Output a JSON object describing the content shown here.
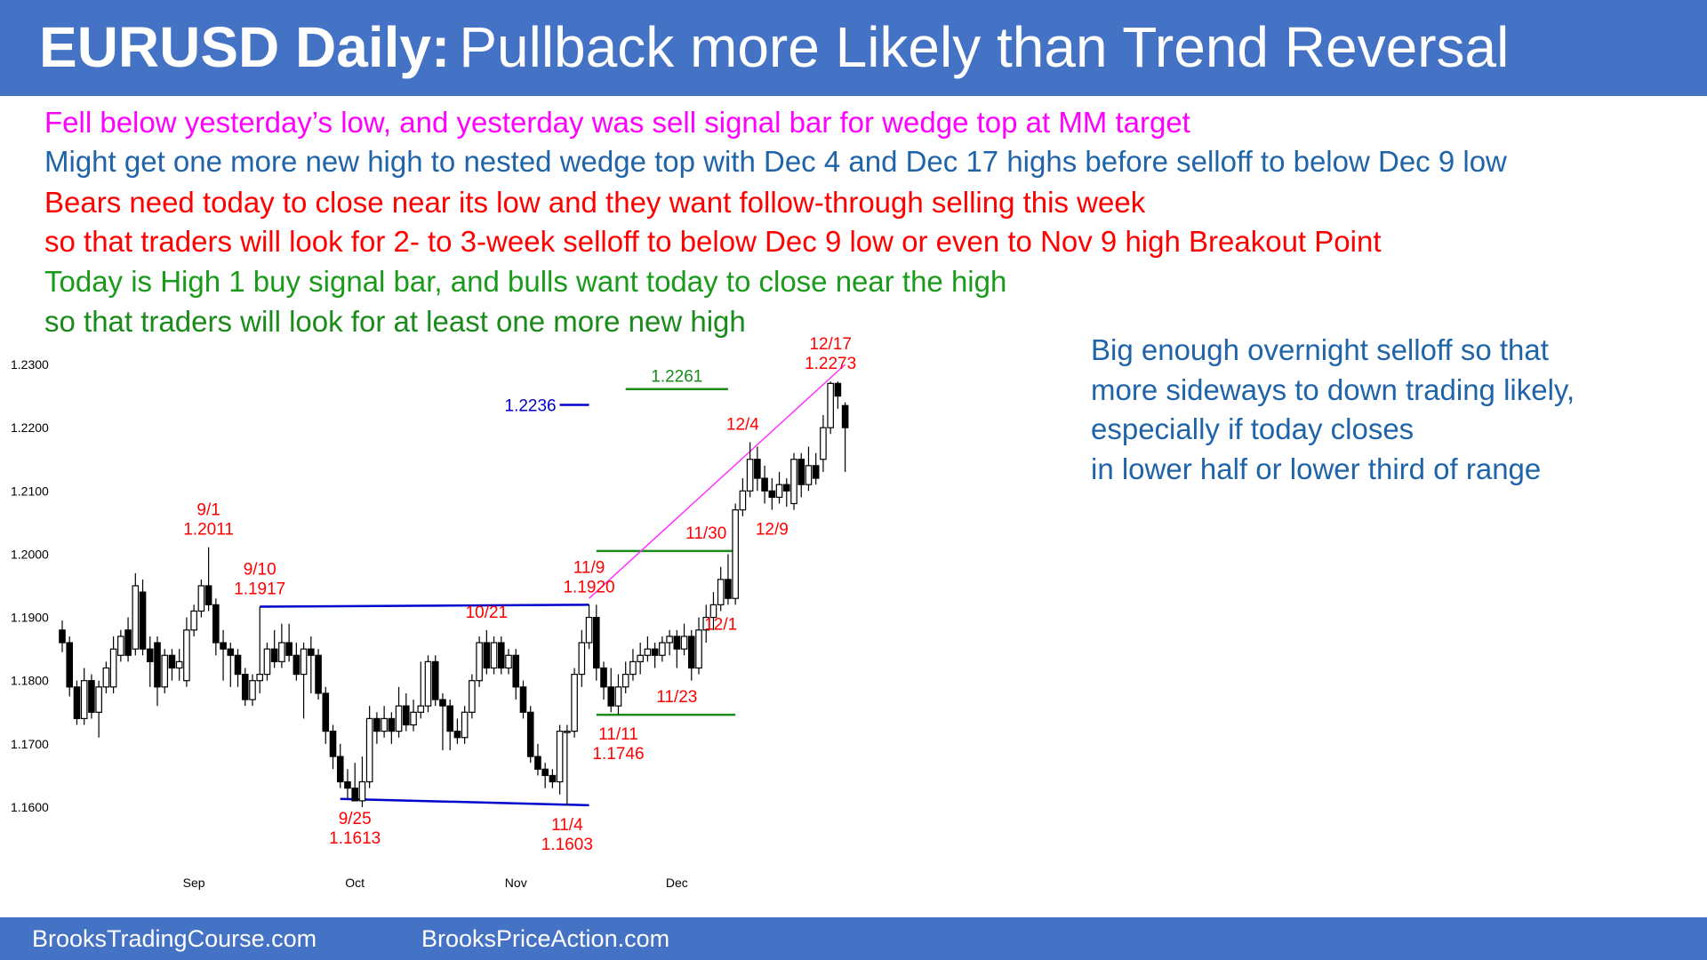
{
  "header": {
    "title_bold": "EURUSD Daily:",
    "title_rest": "Pullback more Likely than Trend Reversal"
  },
  "notes": [
    {
      "text": "Fell below yesterday’s low, and yesterday was sell signal bar for wedge top at MM target",
      "color": "#ff00ff"
    },
    {
      "text": "Might get one more new high to nested wedge top with Dec 4 and Dec 17 highs before selloff to below Dec 9 low",
      "color": "#1f63a9"
    },
    {
      "text": "Bears need today to close near its low and they want follow-through selling this week",
      "color": "#ff0000"
    },
    {
      "text": "so that traders will look for 2- to 3-week selloff to below Dec 9 low or even to Nov 9 high Breakout Point",
      "color": "#ff0000"
    },
    {
      "text": "Today is High 1 buy signal bar, and bulls want today to close near the high",
      "color": "#1a9a1a"
    },
    {
      "text": "so that traders will look for at least one more new high",
      "color": "#1a8a1a"
    }
  ],
  "side_note": [
    "Big enough overnight selloff so that",
    "more sideways to down trading likely,",
    "especially  if today closes",
    "in lower half or lower third of range"
  ],
  "footer": {
    "left": "BrooksTradingCourse.com",
    "right": "BrooksPriceAction.com"
  },
  "colors": {
    "header_bg": "#4472c4",
    "bull_body": "#ffffff",
    "bear_body": "#000000",
    "annotation_red": "#ff0000",
    "line_blue": "#0000cc",
    "line_green": "#1a8a1a",
    "wedge_line": "#ff33ff"
  },
  "chart_data": {
    "type": "candlestick",
    "title": "EURUSD Daily",
    "y_ticks": [
      "1.2300",
      "1.2200",
      "1.2100",
      "1.2000",
      "1.1900",
      "1.1800",
      "1.1700",
      "1.1600"
    ],
    "ylim": [
      1.1525,
      1.232
    ],
    "x_ticks": [
      {
        "label": "Sep",
        "bar": 18
      },
      {
        "label": "Oct",
        "bar": 40
      },
      {
        "label": "Nov",
        "bar": 62
      },
      {
        "label": "Dec",
        "bar": 84
      }
    ],
    "candles": [
      [
        1.188,
        1.186,
        1.1895,
        1.1845
      ],
      [
        1.186,
        1.179,
        1.187,
        1.1775
      ],
      [
        1.179,
        1.174,
        1.18,
        1.173
      ],
      [
        1.174,
        1.18,
        1.182,
        1.173
      ],
      [
        1.18,
        1.175,
        1.181,
        1.174
      ],
      [
        1.175,
        1.179,
        1.18,
        1.171
      ],
      [
        1.179,
        1.182,
        1.183,
        1.178
      ],
      [
        1.179,
        1.185,
        1.187,
        1.178
      ],
      [
        1.184,
        1.187,
        1.188,
        1.183
      ],
      [
        1.188,
        1.184,
        1.19,
        1.183
      ],
      [
        1.185,
        1.195,
        1.197,
        1.184
      ],
      [
        1.194,
        1.185,
        1.196,
        1.184
      ],
      [
        1.185,
        1.183,
        1.187,
        1.179
      ],
      [
        1.186,
        1.179,
        1.187,
        1.176
      ],
      [
        1.179,
        1.184,
        1.185,
        1.178
      ],
      [
        1.184,
        1.182,
        1.185,
        1.18
      ],
      [
        1.182,
        1.183,
        1.185,
        1.18
      ],
      [
        1.18,
        1.188,
        1.19,
        1.179
      ],
      [
        1.188,
        1.191,
        1.192,
        1.187
      ],
      [
        1.191,
        1.195,
        1.196,
        1.19
      ],
      [
        1.195,
        1.192,
        1.2011,
        1.191
      ],
      [
        1.192,
        1.186,
        1.193,
        1.184
      ],
      [
        1.186,
        1.185,
        1.188,
        1.18
      ],
      [
        1.185,
        1.184,
        1.186,
        1.179
      ],
      [
        1.184,
        1.181,
        1.185,
        1.179
      ],
      [
        1.181,
        1.177,
        1.182,
        1.176
      ],
      [
        1.177,
        1.18,
        1.181,
        1.176
      ],
      [
        1.18,
        1.181,
        1.1917,
        1.178
      ],
      [
        1.181,
        1.185,
        1.186,
        1.18
      ],
      [
        1.185,
        1.183,
        1.188,
        1.182
      ],
      [
        1.183,
        1.186,
        1.189,
        1.182
      ],
      [
        1.186,
        1.184,
        1.189,
        1.183
      ],
      [
        1.184,
        1.181,
        1.186,
        1.18
      ],
      [
        1.181,
        1.185,
        1.186,
        1.174
      ],
      [
        1.185,
        1.184,
        1.187,
        1.178
      ],
      [
        1.184,
        1.178,
        1.185,
        1.177
      ],
      [
        1.178,
        1.172,
        1.179,
        1.17
      ],
      [
        1.172,
        1.168,
        1.173,
        1.166
      ],
      [
        1.168,
        1.164,
        1.17,
        1.163
      ],
      [
        1.164,
        1.163,
        1.166,
        1.1613
      ],
      [
        1.163,
        1.161,
        1.167,
        1.1613
      ],
      [
        1.161,
        1.164,
        1.168,
        1.16
      ],
      [
        1.164,
        1.174,
        1.176,
        1.163
      ],
      [
        1.174,
        1.172,
        1.175,
        1.17
      ],
      [
        1.172,
        1.174,
        1.176,
        1.171
      ],
      [
        1.174,
        1.172,
        1.175,
        1.17
      ],
      [
        1.172,
        1.176,
        1.179,
        1.171
      ],
      [
        1.176,
        1.173,
        1.178,
        1.172
      ],
      [
        1.173,
        1.175,
        1.177,
        1.172
      ],
      [
        1.175,
        1.176,
        1.183,
        1.174
      ],
      [
        1.176,
        1.183,
        1.184,
        1.175
      ],
      [
        1.183,
        1.177,
        1.184,
        1.176
      ],
      [
        1.177,
        1.176,
        1.178,
        1.169
      ],
      [
        1.176,
        1.172,
        1.177,
        1.169
      ],
      [
        1.172,
        1.171,
        1.174,
        1.17
      ],
      [
        1.171,
        1.175,
        1.176,
        1.17
      ],
      [
        1.175,
        1.18,
        1.181,
        1.174
      ],
      [
        1.18,
        1.186,
        1.187,
        1.179
      ],
      [
        1.186,
        1.182,
        1.188,
        1.181
      ],
      [
        1.182,
        1.186,
        1.187,
        1.181
      ],
      [
        1.186,
        1.182,
        1.187,
        1.181
      ],
      [
        1.182,
        1.184,
        1.185,
        1.181
      ],
      [
        1.184,
        1.179,
        1.185,
        1.177
      ],
      [
        1.179,
        1.175,
        1.18,
        1.174
      ],
      [
        1.175,
        1.168,
        1.176,
        1.167
      ],
      [
        1.168,
        1.166,
        1.17,
        1.165
      ],
      [
        1.166,
        1.165,
        1.167,
        1.163
      ],
      [
        1.165,
        1.164,
        1.166,
        1.163
      ],
      [
        1.164,
        1.172,
        1.173,
        1.162
      ],
      [
        1.172,
        1.172,
        1.173,
        1.1603
      ],
      [
        1.172,
        1.181,
        1.182,
        1.171
      ],
      [
        1.181,
        1.186,
        1.188,
        1.179
      ],
      [
        1.186,
        1.19,
        1.192,
        1.185
      ],
      [
        1.19,
        1.182,
        1.192,
        1.18
      ],
      [
        1.182,
        1.179,
        1.183,
        1.177
      ],
      [
        1.179,
        1.176,
        1.182,
        1.175
      ],
      [
        1.176,
        1.179,
        1.181,
        1.1746
      ],
      [
        1.179,
        1.181,
        1.183,
        1.178
      ],
      [
        1.181,
        1.183,
        1.185,
        1.18
      ],
      [
        1.183,
        1.184,
        1.186,
        1.181
      ],
      [
        1.184,
        1.185,
        1.187,
        1.183
      ],
      [
        1.185,
        1.184,
        1.186,
        1.182
      ],
      [
        1.184,
        1.186,
        1.187,
        1.183
      ],
      [
        1.186,
        1.187,
        1.188,
        1.184
      ],
      [
        1.187,
        1.185,
        1.188,
        1.182
      ],
      [
        1.185,
        1.187,
        1.189,
        1.184
      ],
      [
        1.187,
        1.182,
        1.188,
        1.18
      ],
      [
        1.182,
        1.188,
        1.19,
        1.181
      ],
      [
        1.188,
        1.19,
        1.192,
        1.186
      ],
      [
        1.19,
        1.192,
        1.194,
        1.188
      ],
      [
        1.192,
        1.196,
        1.198,
        1.191
      ],
      [
        1.196,
        1.193,
        1.2,
        1.192
      ],
      [
        1.193,
        1.207,
        1.208,
        1.192
      ],
      [
        1.207,
        1.21,
        1.212,
        1.206
      ],
      [
        1.21,
        1.215,
        1.2177,
        1.209
      ],
      [
        1.215,
        1.212,
        1.217,
        1.21
      ],
      [
        1.212,
        1.21,
        1.214,
        1.208
      ],
      [
        1.21,
        1.209,
        1.212,
        1.207
      ],
      [
        1.209,
        1.211,
        1.213,
        1.208
      ],
      [
        1.211,
        1.21,
        1.212,
        1.2075
      ],
      [
        1.208,
        1.215,
        1.216,
        1.207
      ],
      [
        1.215,
        1.211,
        1.216,
        1.209
      ],
      [
        1.211,
        1.214,
        1.217,
        1.21
      ],
      [
        1.214,
        1.212,
        1.216,
        1.211
      ],
      [
        1.215,
        1.22,
        1.222,
        1.213
      ],
      [
        1.22,
        1.227,
        1.2273,
        1.219
      ],
      [
        1.227,
        1.225,
        1.2273,
        1.223
      ],
      [
        1.2235,
        1.22,
        1.224,
        1.213
      ]
    ],
    "horizontal_lines": [
      {
        "from_bar": 27,
        "to_bar": 72,
        "y1": 1.1917,
        "y2": 1.192,
        "color": "#0000cc"
      },
      {
        "from_bar": 38,
        "to_bar": 72,
        "y1": 1.1613,
        "y2": 1.1603,
        "color": "#0000cc"
      },
      {
        "from_bar": 73,
        "to_bar": 92,
        "y1": 1.2005,
        "y2": 1.2005,
        "color": "#1a8a1a"
      },
      {
        "from_bar": 73,
        "to_bar": 92,
        "y1": 1.1746,
        "y2": 1.1746,
        "color": "#1a8a1a"
      }
    ],
    "level_marks": [
      {
        "label": "1.2261",
        "value": 1.2261,
        "from_bar": 77,
        "to_bar": 91,
        "color": "#1a8a1a",
        "label_side": "above"
      },
      {
        "label": "1.2236",
        "value": 1.2236,
        "from_bar": 68,
        "to_bar": 72,
        "color": "#0000cc",
        "label_side": "left"
      }
    ],
    "wedge_line": {
      "from_bar": 72,
      "from_value": 1.193,
      "to_bar": 107,
      "to_value": 1.23,
      "color": "#ff33ff"
    },
    "annotations": [
      {
        "lines": [
          "9/1",
          "1.2011"
        ],
        "bar": 20,
        "value": 1.2011,
        "position": "above"
      },
      {
        "lines": [
          "9/10",
          "1.1917"
        ],
        "bar": 27,
        "value": 1.1917,
        "position": "above"
      },
      {
        "lines": [
          "9/25",
          "1.1613"
        ],
        "bar": 40,
        "value": 1.1613,
        "position": "below"
      },
      {
        "lines": [
          "10/21"
        ],
        "bar": 58,
        "value": 1.188,
        "position": "above"
      },
      {
        "lines": [
          "11/9",
          "1.1920"
        ],
        "bar": 72,
        "value": 1.192,
        "position": "above"
      },
      {
        "lines": [
          "11/4",
          "1.1603"
        ],
        "bar": 69,
        "value": 1.1603,
        "position": "below"
      },
      {
        "lines": [
          "11/11",
          "1.1746"
        ],
        "bar": 76,
        "value": 1.1746,
        "position": "below"
      },
      {
        "lines": [
          "11/23"
        ],
        "bar": 84,
        "value": 1.1746,
        "position": "above"
      },
      {
        "lines": [
          "11/30"
        ],
        "bar": 88,
        "value": 1.2005,
        "position": "above"
      },
      {
        "lines": [
          "12/1"
        ],
        "bar": 90,
        "value": 1.192,
        "position": "below"
      },
      {
        "lines": [
          "12/4"
        ],
        "bar": 93,
        "value": 1.2177,
        "position": "above"
      },
      {
        "lines": [
          "12/9"
        ],
        "bar": 97,
        "value": 1.207,
        "position": "below"
      },
      {
        "lines": [
          "12/17",
          "1.2273"
        ],
        "bar": 105,
        "value": 1.2273,
        "position": "above"
      }
    ]
  }
}
